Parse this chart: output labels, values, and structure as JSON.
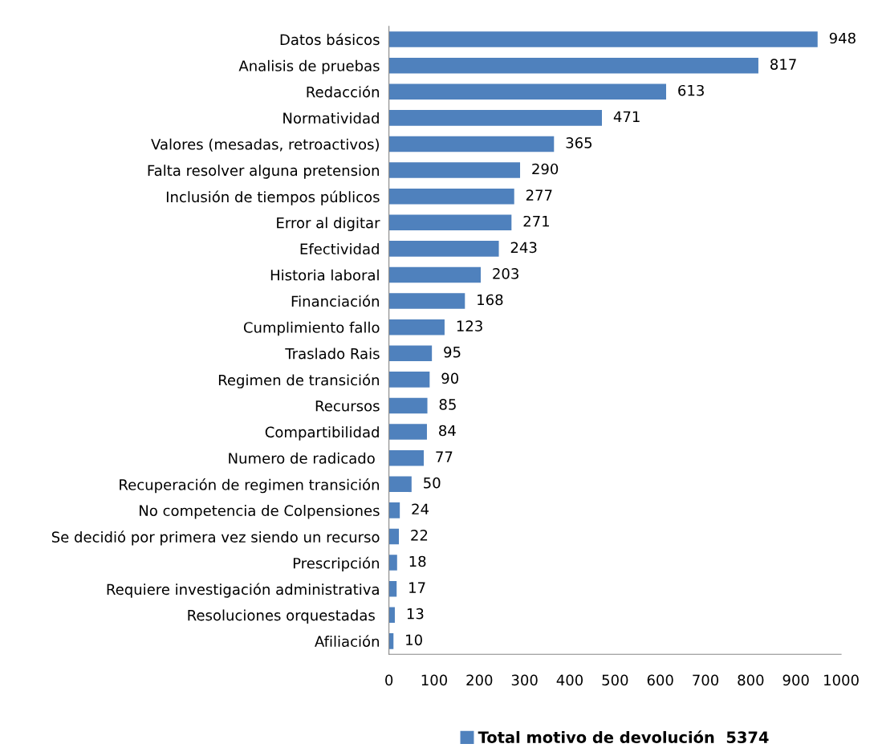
{
  "chart_data": {
    "type": "bar",
    "orientation": "horizontal",
    "categories": [
      "Datos básicos",
      "Analisis de pruebas",
      "Redacción",
      "Normatividad",
      "Valores (mesadas, retroactivos)",
      "Falta resolver alguna pretension",
      "Inclusión de tiempos públicos",
      "Error al digitar",
      "Efectividad",
      "Historia laboral",
      "Financiación",
      "Cumplimiento fallo",
      "Traslado Rais",
      "Regimen de transición",
      "Recursos",
      "Compartibilidad",
      "Numero de radicado ",
      "Recuperación de regimen transición",
      "No competencia de Colpensiones",
      "Se decidió por primera vez siendo un recurso",
      "Prescripción",
      "Requiere investigación administrativa",
      "Resoluciones orquestadas ",
      "Afiliación"
    ],
    "series": [
      {
        "name": "Total motivo de devolución  5374",
        "color": "#4f81bd",
        "values": [
          948,
          817,
          613,
          471,
          365,
          290,
          277,
          271,
          243,
          203,
          168,
          123,
          95,
          90,
          85,
          84,
          77,
          50,
          24,
          22,
          18,
          17,
          13,
          10
        ]
      }
    ],
    "xlim": [
      0,
      1000
    ],
    "xticks": [
      0,
      100,
      200,
      300,
      400,
      500,
      600,
      700,
      800,
      900,
      1000
    ],
    "data_labels": true,
    "grid": false,
    "legend": "bottom"
  }
}
